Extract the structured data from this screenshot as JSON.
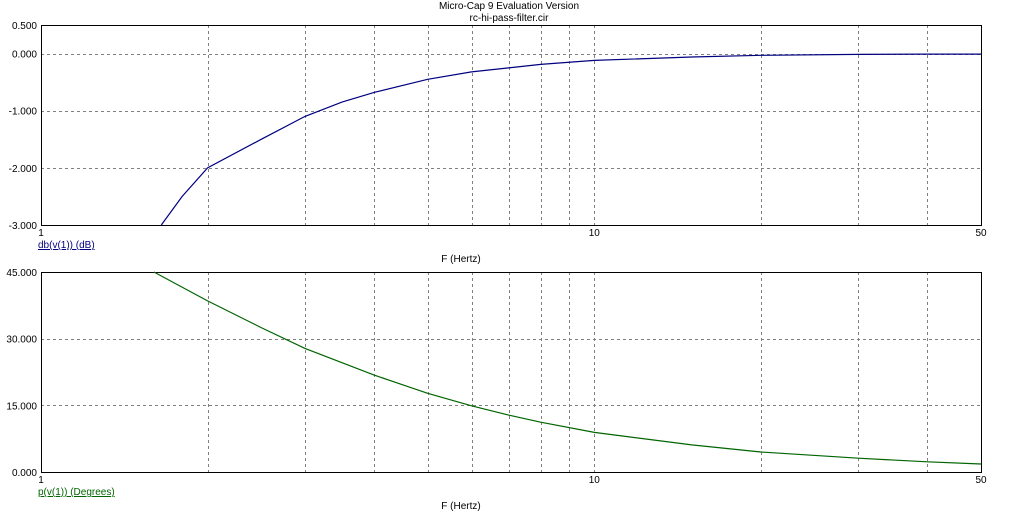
{
  "title": "Micro-Cap 9 Evaluation Version",
  "subtitle": "rc-hi-pass-filter.cir",
  "colors": {
    "grid": "#808080",
    "magnitude": "#000080",
    "phase": "#006400",
    "axis_text": "#000000"
  },
  "chart_data": [
    {
      "type": "line",
      "xlabel": "F (Hertz)",
      "ylabel": "db(v(1)) (dB)",
      "xscale": "log",
      "xlim": [
        1,
        50
      ],
      "ylim": [
        -3.0,
        0.5
      ],
      "x_tick_labels": [
        "1",
        "10",
        "50"
      ],
      "y_tick_labels": [
        "0.500",
        "0.000",
        "-1.000",
        "-2.000",
        "-3.000"
      ],
      "y_tick_values": [
        0.5,
        0.0,
        -1.0,
        -2.0,
        -3.0
      ],
      "x_grid_values": [
        2,
        3,
        4,
        5,
        6,
        7,
        8,
        9,
        10,
        20,
        30,
        40
      ],
      "y_grid_values": [
        0.0,
        -1.0,
        -2.0
      ],
      "grid": true,
      "series": [
        {
          "name": "db(v(1)) (dB)",
          "color": "#000080",
          "x": [
            1.65,
            1.8,
            2.0,
            2.5,
            3.0,
            3.5,
            4.0,
            5.0,
            6.0,
            7.0,
            8.0,
            10.0,
            15.0,
            20.0,
            30.0,
            40.0,
            50.0
          ],
          "y": [
            -3.0,
            -2.5,
            -2.0,
            -1.5,
            -1.1,
            -0.85,
            -0.68,
            -0.45,
            -0.32,
            -0.25,
            -0.19,
            -0.12,
            -0.06,
            -0.03,
            -0.015,
            -0.01,
            -0.01
          ]
        }
      ]
    },
    {
      "type": "line",
      "xlabel": "F (Hertz)",
      "ylabel": "p(v(1)) (Degrees)",
      "xscale": "log",
      "xlim": [
        1,
        50
      ],
      "ylim": [
        0.0,
        45.0
      ],
      "x_tick_labels": [
        "1",
        "10",
        "50"
      ],
      "y_tick_labels": [
        "45.000",
        "30.000",
        "15.000",
        "0.000"
      ],
      "y_tick_values": [
        45.0,
        30.0,
        15.0,
        0.0
      ],
      "x_grid_values": [
        2,
        3,
        4,
        5,
        6,
        7,
        8,
        9,
        10,
        20,
        30,
        40
      ],
      "y_grid_values": [
        30.0,
        15.0
      ],
      "grid": true,
      "series": [
        {
          "name": "p(v(1)) (Degrees)",
          "color": "#006400",
          "x": [
            1.6,
            2.0,
            2.5,
            3.0,
            4.0,
            5.0,
            6.0,
            7.0,
            8.0,
            10.0,
            15.0,
            20.0,
            30.0,
            40.0,
            50.0
          ],
          "y": [
            45.0,
            38.5,
            32.5,
            27.8,
            21.8,
            17.7,
            14.9,
            12.8,
            11.2,
            8.9,
            6.1,
            4.5,
            3.1,
            2.3,
            1.8
          ]
        }
      ]
    }
  ]
}
